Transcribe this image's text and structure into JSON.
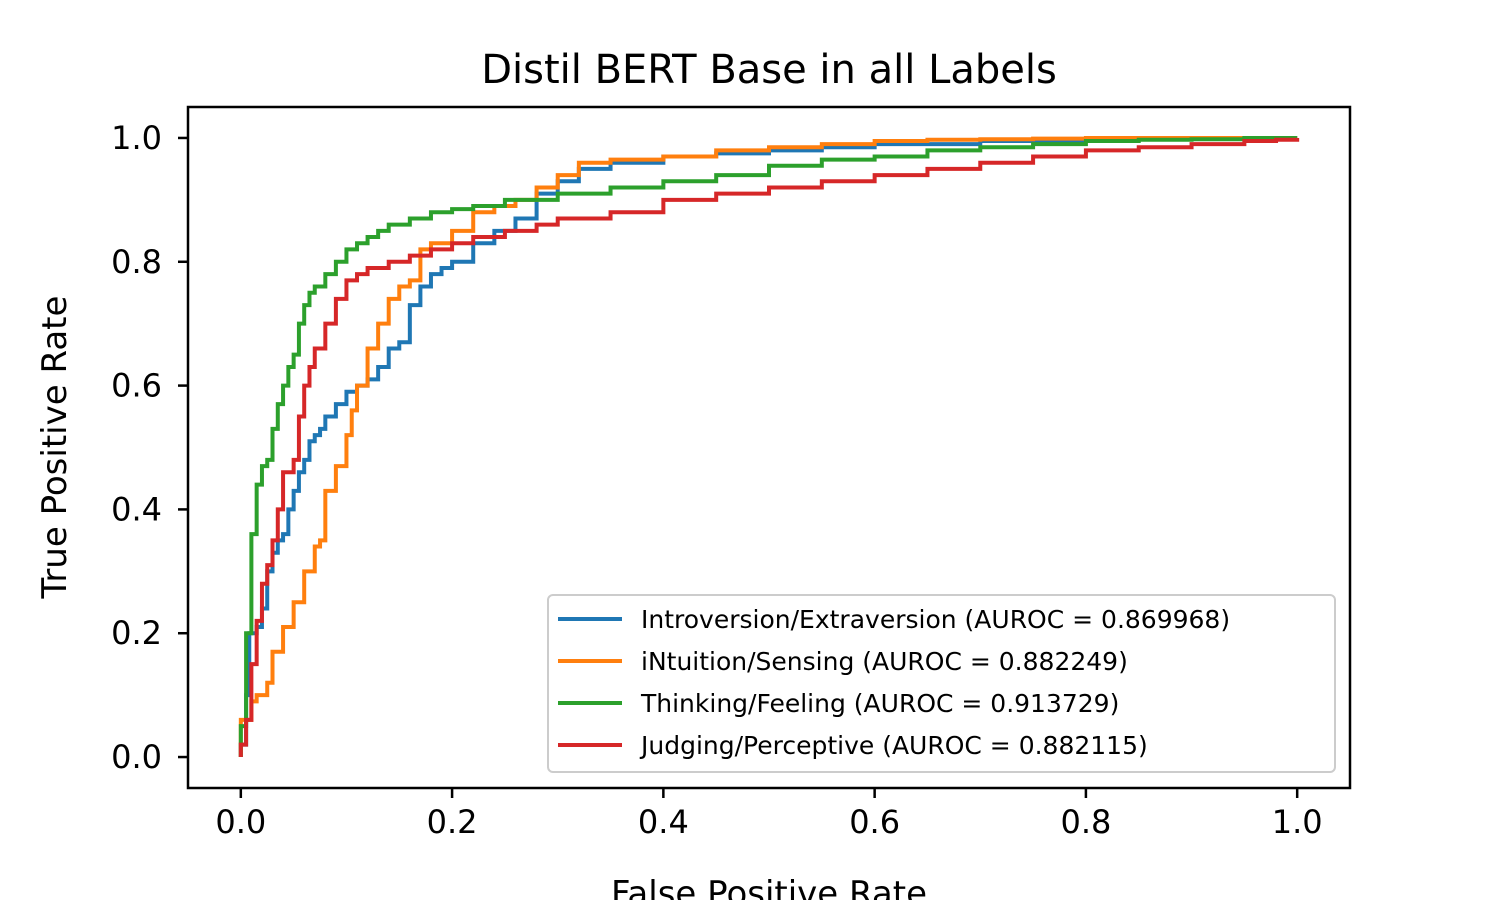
{
  "chart_data": {
    "type": "line",
    "title": "Distil BERT Base in all Labels",
    "xlabel": "False Positive Rate",
    "ylabel": "True Positive Rate",
    "xlim": [
      -0.05,
      1.05
    ],
    "ylim": [
      -0.05,
      1.05
    ],
    "xticks": [
      0.0,
      0.2,
      0.4,
      0.6,
      0.8,
      1.0
    ],
    "yticks": [
      0.0,
      0.2,
      0.4,
      0.6,
      0.8,
      1.0
    ],
    "xtick_labels": [
      "0.0",
      "0.2",
      "0.4",
      "0.6",
      "0.8",
      "1.0"
    ],
    "ytick_labels": [
      "0.0",
      "0.2",
      "0.4",
      "0.6",
      "0.8",
      "1.0"
    ],
    "grid": false,
    "legend_position": "lower-right",
    "series": [
      {
        "name": "Introversion/Extraversion (AUROC = 0.869968)",
        "color": "#1f77b4",
        "x": [
          0.0,
          0.0,
          0.005,
          0.008,
          0.015,
          0.02,
          0.025,
          0.03,
          0.035,
          0.04,
          0.045,
          0.05,
          0.055,
          0.06,
          0.065,
          0.07,
          0.075,
          0.08,
          0.09,
          0.1,
          0.11,
          0.12,
          0.13,
          0.14,
          0.15,
          0.16,
          0.17,
          0.18,
          0.19,
          0.2,
          0.22,
          0.24,
          0.26,
          0.28,
          0.3,
          0.32,
          0.35,
          0.4,
          0.45,
          0.5,
          0.55,
          0.6,
          0.65,
          0.7,
          0.75,
          0.8,
          0.85,
          0.9,
          0.95,
          1.0
        ],
        "y": [
          0.0,
          0.02,
          0.1,
          0.2,
          0.21,
          0.24,
          0.3,
          0.33,
          0.35,
          0.36,
          0.4,
          0.43,
          0.46,
          0.48,
          0.51,
          0.52,
          0.53,
          0.55,
          0.57,
          0.59,
          0.6,
          0.61,
          0.63,
          0.66,
          0.67,
          0.73,
          0.76,
          0.78,
          0.79,
          0.8,
          0.83,
          0.85,
          0.87,
          0.91,
          0.93,
          0.95,
          0.96,
          0.97,
          0.975,
          0.98,
          0.985,
          0.99,
          0.99,
          0.995,
          0.995,
          0.997,
          0.998,
          1.0,
          1.0,
          1.0
        ]
      },
      {
        "name": "iNtuition/Sensing (AUROC = 0.882249)",
        "color": "#ff7f0e",
        "x": [
          0.0,
          0.0,
          0.01,
          0.015,
          0.025,
          0.03,
          0.04,
          0.05,
          0.06,
          0.07,
          0.075,
          0.08,
          0.09,
          0.1,
          0.105,
          0.11,
          0.12,
          0.13,
          0.14,
          0.15,
          0.16,
          0.17,
          0.18,
          0.2,
          0.22,
          0.24,
          0.26,
          0.28,
          0.3,
          0.32,
          0.35,
          0.4,
          0.45,
          0.5,
          0.55,
          0.6,
          0.65,
          0.7,
          0.75,
          0.8,
          0.85,
          0.9,
          0.95,
          1.0
        ],
        "y": [
          0.0,
          0.06,
          0.09,
          0.1,
          0.12,
          0.17,
          0.21,
          0.25,
          0.3,
          0.34,
          0.35,
          0.43,
          0.47,
          0.52,
          0.56,
          0.6,
          0.66,
          0.7,
          0.74,
          0.76,
          0.77,
          0.82,
          0.83,
          0.85,
          0.88,
          0.89,
          0.9,
          0.92,
          0.94,
          0.96,
          0.965,
          0.97,
          0.98,
          0.985,
          0.99,
          0.995,
          0.997,
          0.998,
          0.999,
          1.0,
          1.0,
          1.0,
          1.0,
          1.0
        ]
      },
      {
        "name": "Thinking/Feeling (AUROC = 0.913729)",
        "color": "#2ca02c",
        "x": [
          0.0,
          0.0,
          0.005,
          0.01,
          0.015,
          0.02,
          0.025,
          0.03,
          0.035,
          0.04,
          0.045,
          0.05,
          0.055,
          0.06,
          0.065,
          0.07,
          0.08,
          0.09,
          0.1,
          0.11,
          0.12,
          0.13,
          0.14,
          0.16,
          0.18,
          0.2,
          0.22,
          0.25,
          0.3,
          0.35,
          0.4,
          0.45,
          0.5,
          0.55,
          0.6,
          0.65,
          0.7,
          0.75,
          0.8,
          0.85,
          0.9,
          0.95,
          1.0
        ],
        "y": [
          0.0,
          0.05,
          0.2,
          0.36,
          0.44,
          0.47,
          0.48,
          0.53,
          0.57,
          0.6,
          0.63,
          0.65,
          0.7,
          0.73,
          0.75,
          0.76,
          0.78,
          0.8,
          0.82,
          0.83,
          0.84,
          0.85,
          0.86,
          0.87,
          0.88,
          0.885,
          0.89,
          0.9,
          0.91,
          0.92,
          0.93,
          0.94,
          0.955,
          0.965,
          0.97,
          0.98,
          0.985,
          0.99,
          0.995,
          0.997,
          0.998,
          1.0,
          1.0
        ]
      },
      {
        "name": "Judging/Perceptive (AUROC = 0.882115)",
        "color": "#d62728",
        "x": [
          0.0,
          0.0,
          0.005,
          0.01,
          0.015,
          0.02,
          0.025,
          0.03,
          0.035,
          0.04,
          0.05,
          0.055,
          0.06,
          0.065,
          0.07,
          0.08,
          0.09,
          0.1,
          0.11,
          0.12,
          0.14,
          0.16,
          0.18,
          0.2,
          0.22,
          0.25,
          0.28,
          0.3,
          0.35,
          0.4,
          0.45,
          0.5,
          0.55,
          0.6,
          0.65,
          0.7,
          0.75,
          0.8,
          0.85,
          0.9,
          0.95,
          0.98,
          1.0
        ],
        "y": [
          0.0,
          0.02,
          0.06,
          0.15,
          0.22,
          0.28,
          0.31,
          0.35,
          0.4,
          0.46,
          0.48,
          0.55,
          0.6,
          0.63,
          0.66,
          0.7,
          0.74,
          0.77,
          0.78,
          0.79,
          0.8,
          0.81,
          0.82,
          0.83,
          0.84,
          0.85,
          0.86,
          0.87,
          0.88,
          0.9,
          0.91,
          0.92,
          0.93,
          0.94,
          0.95,
          0.96,
          0.97,
          0.98,
          0.985,
          0.99,
          0.995,
          0.997,
          1.0
        ]
      }
    ]
  }
}
